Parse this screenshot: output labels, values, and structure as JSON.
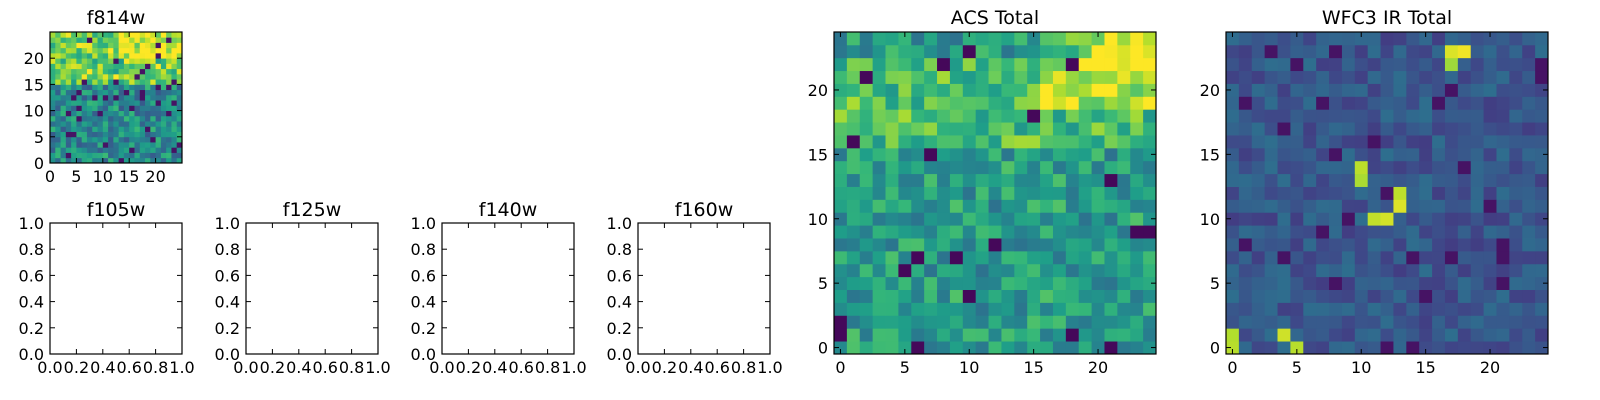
{
  "chart_data": [
    {
      "type": "heatmap",
      "title": "f814w",
      "xticks": [
        0,
        5,
        10,
        15,
        20
      ],
      "yticks": [
        0,
        5,
        10,
        15,
        20
      ],
      "xlim": [
        0,
        25
      ],
      "ylim": [
        0,
        25
      ],
      "size": 25,
      "colormap": "viridis",
      "bright_region": "upper band, rows 15-24",
      "seed": 814
    },
    {
      "type": "scatter",
      "title": "f105w",
      "xticks": [
        "0.0",
        "0.2",
        "0.4",
        "0.6",
        "0.8",
        "1.0"
      ],
      "yticks": [
        "0.0",
        "0.2",
        "0.4",
        "0.6",
        "0.8",
        "1.0"
      ],
      "xlim": [
        0,
        1
      ],
      "ylim": [
        0,
        1
      ],
      "empty": true
    },
    {
      "type": "scatter",
      "title": "f125w",
      "xticks": [
        "0.0",
        "0.2",
        "0.4",
        "0.6",
        "0.8",
        "1.0"
      ],
      "yticks": [
        "0.0",
        "0.2",
        "0.4",
        "0.6",
        "0.8",
        "1.0"
      ],
      "xlim": [
        0,
        1
      ],
      "ylim": [
        0,
        1
      ],
      "empty": true
    },
    {
      "type": "scatter",
      "title": "f140w",
      "xticks": [
        "0.0",
        "0.2",
        "0.4",
        "0.6",
        "0.8",
        "1.0"
      ],
      "yticks": [
        "0.0",
        "0.2",
        "0.4",
        "0.6",
        "0.8",
        "1.0"
      ],
      "xlim": [
        0,
        1
      ],
      "ylim": [
        0,
        1
      ],
      "empty": true
    },
    {
      "type": "scatter",
      "title": "f160w",
      "xticks": [
        "0.0",
        "0.2",
        "0.4",
        "0.6",
        "0.8",
        "1.0"
      ],
      "yticks": [
        "0.0",
        "0.2",
        "0.4",
        "0.6",
        "0.8",
        "1.0"
      ],
      "xlim": [
        0,
        1
      ],
      "ylim": [
        0,
        1
      ],
      "empty": true
    },
    {
      "type": "heatmap",
      "title": "ACS Total",
      "xticks": [
        0,
        5,
        10,
        15,
        20
      ],
      "yticks": [
        0,
        5,
        10,
        15,
        20
      ],
      "xlim": [
        -0.5,
        24.5
      ],
      "ylim": [
        -0.5,
        24.5
      ],
      "size": 25,
      "colormap": "viridis",
      "bright_region": "upper band, rows 19-24",
      "seed": 101
    },
    {
      "type": "heatmap",
      "title": "WFC3 IR Total",
      "xticks": [
        0,
        5,
        10,
        15,
        20
      ],
      "yticks": [
        0,
        5,
        10,
        15,
        20
      ],
      "xlim": [
        -0.5,
        24.5
      ],
      "ylim": [
        -0.5,
        24.5
      ],
      "size": 25,
      "colormap": "viridis",
      "bright_region": "sparse bright pixels near (18,23), (13,12), (11,10), (0,0), (5,0)",
      "seed": 303
    }
  ]
}
